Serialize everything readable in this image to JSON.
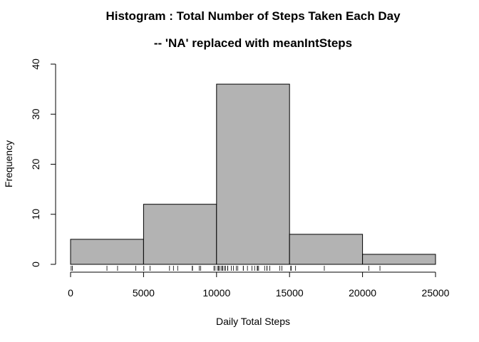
{
  "chart_data": {
    "type": "bar",
    "title": "Histogram : Total Number of Steps Taken Each Day",
    "subtitle": "--  'NA' replaced with meanIntSteps",
    "xlabel": "Daily Total Steps",
    "ylabel": "Frequency",
    "bins": [
      {
        "start": 0,
        "end": 5000,
        "value": 5
      },
      {
        "start": 5000,
        "end": 10000,
        "value": 12
      },
      {
        "start": 10000,
        "end": 15000,
        "value": 36
      },
      {
        "start": 15000,
        "end": 20000,
        "value": 6
      },
      {
        "start": 20000,
        "end": 25000,
        "value": 2
      }
    ],
    "xlim": [
      0,
      25000
    ],
    "ylim": [
      0,
      40
    ],
    "x_ticks": [
      "0",
      "5000",
      "10000",
      "15000",
      "20000",
      "25000"
    ],
    "y_ticks": [
      "0",
      "10",
      "20",
      "30",
      "40"
    ],
    "rug": [
      41,
      126,
      2492,
      3219,
      4472,
      5018,
      5441,
      6778,
      7047,
      7336,
      8334,
      8355,
      8821,
      8918,
      9819,
      9900,
      10056,
      10139,
      10183,
      10304,
      10395,
      10439,
      10571,
      10600,
      10765,
      10766,
      11015,
      11162,
      11352,
      11458,
      11829,
      11834,
      12116,
      12426,
      12608,
      12787,
      12811,
      12883,
      13294,
      13452,
      13460,
      13646,
      14339,
      14478,
      15084,
      15098,
      15110,
      15414,
      17382,
      20427,
      21194
    ],
    "bar_color": "#b3b3b3",
    "grid": false
  }
}
